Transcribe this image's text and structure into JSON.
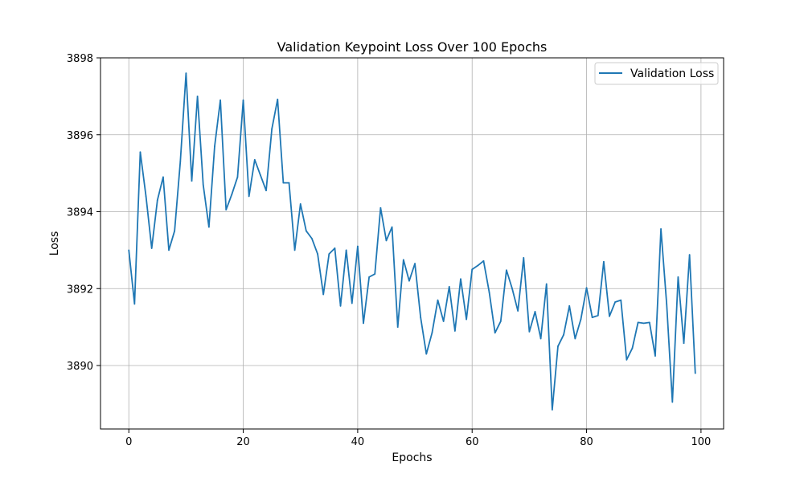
{
  "chart_data": {
    "type": "line",
    "title": "Validation Keypoint Loss Over 100 Epochs",
    "xlabel": "Epochs",
    "ylabel": "Loss",
    "xlim": [
      -4.95,
      103.95
    ],
    "ylim": [
      3888.35,
      3898.0
    ],
    "xticks": [
      0,
      20,
      40,
      60,
      80,
      100
    ],
    "yticks": [
      3890,
      3892,
      3894,
      3896,
      3898
    ],
    "grid": true,
    "legend_position": "top-right",
    "color": "#1f77b4",
    "x": [
      0,
      1,
      2,
      3,
      4,
      5,
      6,
      7,
      8,
      9,
      10,
      11,
      12,
      13,
      14,
      15,
      16,
      17,
      18,
      19,
      20,
      21,
      22,
      23,
      24,
      25,
      26,
      27,
      28,
      29,
      30,
      31,
      32,
      33,
      34,
      35,
      36,
      37,
      38,
      39,
      40,
      41,
      42,
      43,
      44,
      45,
      46,
      47,
      48,
      49,
      50,
      51,
      52,
      53,
      54,
      55,
      56,
      57,
      58,
      59,
      60,
      61,
      62,
      63,
      64,
      65,
      66,
      67,
      68,
      69,
      70,
      71,
      72,
      73,
      74,
      75,
      76,
      77,
      78,
      79,
      80,
      81,
      82,
      83,
      84,
      85,
      86,
      87,
      88,
      89,
      90,
      91,
      92,
      93,
      94,
      95,
      96,
      97,
      98,
      99
    ],
    "series": [
      {
        "name": "Validation Loss",
        "values": [
          3893.0,
          3891.6,
          3895.55,
          3894.4,
          3893.05,
          3894.3,
          3894.9,
          3893.0,
          3893.5,
          3895.3,
          3897.6,
          3894.8,
          3897.0,
          3894.7,
          3893.6,
          3895.7,
          3896.9,
          3894.05,
          3894.45,
          3894.9,
          3896.9,
          3894.4,
          3895.35,
          3894.95,
          3894.55,
          3896.15,
          3896.92,
          3894.75,
          3894.75,
          3893.0,
          3894.2,
          3893.5,
          3893.3,
          3892.9,
          3891.85,
          3892.9,
          3893.05,
          3891.55,
          3893.0,
          3891.62,
          3893.1,
          3891.1,
          3892.3,
          3892.38,
          3894.1,
          3893.25,
          3893.6,
          3891.0,
          3892.75,
          3892.2,
          3892.65,
          3891.25,
          3890.3,
          3890.85,
          3891.7,
          3891.15,
          3892.05,
          3890.9,
          3892.25,
          3891.2,
          3892.5,
          3892.6,
          3892.72,
          3891.9,
          3890.85,
          3891.15,
          3892.48,
          3892.0,
          3891.42,
          3892.8,
          3890.88,
          3891.4,
          3890.7,
          3892.12,
          3888.85,
          3890.5,
          3890.8,
          3891.55,
          3890.7,
          3891.2,
          3892.02,
          3891.25,
          3891.3,
          3892.7,
          3891.28,
          3891.65,
          3891.7,
          3890.15,
          3890.45,
          3891.12,
          3891.1,
          3891.12,
          3890.25,
          3893.55,
          3891.6,
          3889.05,
          3892.3,
          3890.58,
          3892.88,
          3889.8
        ]
      }
    ]
  }
}
